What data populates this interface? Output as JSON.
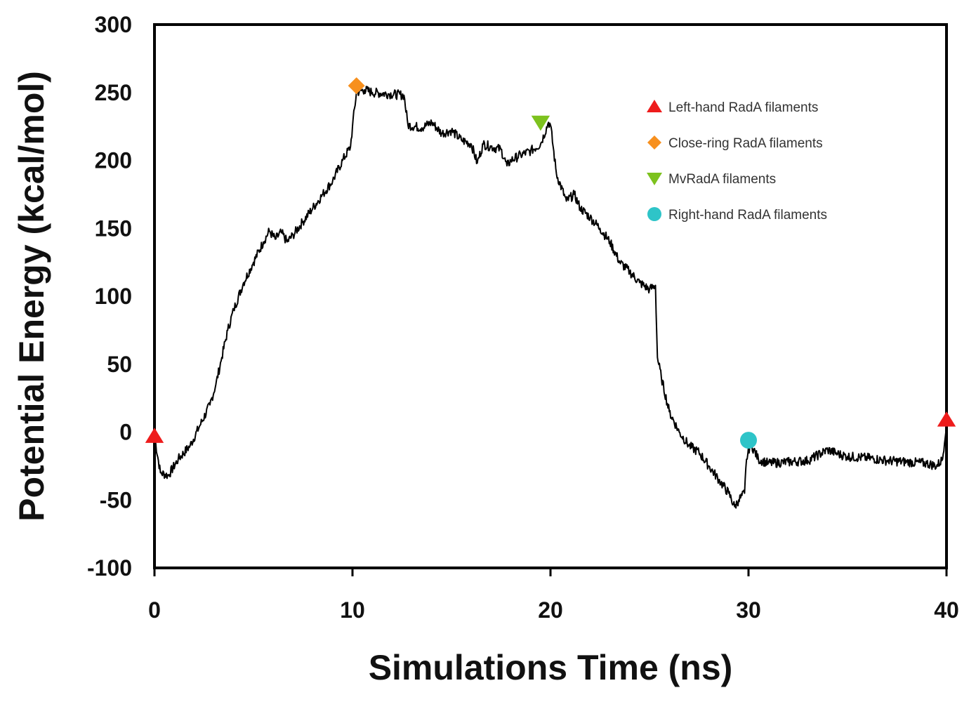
{
  "chart_data": {
    "type": "line",
    "title": "",
    "xlabel": "Simulations Time (ns)",
    "ylabel": "Potential Energy (kcal/mol)",
    "xlim": [
      0,
      40
    ],
    "ylim": [
      -100,
      300
    ],
    "xticks": [
      0,
      10,
      20,
      30,
      40
    ],
    "yticks": [
      -100,
      -50,
      0,
      50,
      100,
      150,
      200,
      250,
      300
    ],
    "xtick_labels": [
      "0",
      "10",
      "20",
      "30",
      "40"
    ],
    "ytick_labels": [
      "-100",
      "-50",
      "0",
      "50",
      "100",
      "150",
      "200",
      "250",
      "300"
    ],
    "grid": false,
    "legend_position": "top-right",
    "series": [
      {
        "name": "Potential Energy",
        "color": "#000000",
        "x": [
          0,
          0.3,
          0.7,
          1.2,
          1.8,
          2.3,
          2.8,
          3.1,
          3.4,
          3.7,
          4.0,
          4.5,
          5.0,
          5.5,
          5.8,
          6.1,
          6.4,
          6.7,
          7.0,
          7.5,
          8.0,
          8.5,
          9.0,
          9.5,
          9.9,
          10.0,
          10.2,
          10.6,
          11.0,
          11.8,
          12.6,
          12.8,
          13.5,
          14.0,
          14.5,
          15.0,
          15.5,
          16.0,
          16.3,
          16.6,
          17.0,
          17.5,
          17.8,
          18.0,
          18.5,
          19.0,
          19.5,
          19.9,
          20.0,
          20.3,
          20.8,
          21.2,
          21.5,
          22.0,
          22.5,
          23.0,
          23.5,
          24.0,
          24.5,
          25.0,
          25.3,
          25.4,
          25.6,
          26.0,
          26.5,
          27.0,
          27.5,
          28.0,
          28.5,
          29.0,
          29.3,
          29.5,
          29.8,
          29.9,
          30.1,
          30.5,
          31.0,
          32.0,
          33.0,
          34.0,
          34.5,
          35.0,
          36.0,
          37.0,
          38.0,
          39.0,
          39.5,
          39.8,
          40.0
        ],
        "y": [
          -3,
          -30,
          -32,
          -20,
          -10,
          5,
          20,
          35,
          55,
          75,
          90,
          110,
          125,
          140,
          148,
          142,
          147,
          140,
          145,
          155,
          165,
          175,
          185,
          200,
          210,
          225,
          250,
          252,
          250,
          249,
          248,
          226,
          224,
          228,
          220,
          222,
          215,
          212,
          198,
          212,
          210,
          208,
          196,
          200,
          204,
          207,
          212,
          228,
          226,
          190,
          170,
          175,
          165,
          158,
          150,
          140,
          125,
          118,
          110,
          105,
          108,
          55,
          40,
          15,
          0,
          -10,
          -15,
          -25,
          -35,
          -45,
          -55,
          -50,
          -45,
          -20,
          -8,
          -20,
          -23,
          -22,
          -21,
          -13,
          -16,
          -18,
          -19,
          -21,
          -22,
          -23,
          -25,
          -20,
          8
        ]
      }
    ],
    "markers": [
      {
        "label": "Left-hand RadA filaments",
        "shape": "triangle-up",
        "color": "#ee1c1c",
        "points": [
          [
            0,
            -3
          ],
          [
            40,
            9
          ]
        ]
      },
      {
        "label": "Close-ring RadA filaments",
        "shape": "diamond",
        "color": "#f7901e",
        "points": [
          [
            10.2,
            255
          ]
        ]
      },
      {
        "label": "MvRadA filaments",
        "shape": "triangle-down",
        "color": "#7dc21e",
        "points": [
          [
            19.5,
            228
          ]
        ]
      },
      {
        "label": "Right-hand RadA filaments",
        "shape": "circle",
        "color": "#2ec4c8",
        "points": [
          [
            30.0,
            -6
          ]
        ]
      }
    ],
    "legend": [
      {
        "label": "Left-hand RadA filaments",
        "shape": "triangle-up",
        "color": "#ee1c1c"
      },
      {
        "label": "Close-ring RadA filaments",
        "shape": "diamond",
        "color": "#f7901e"
      },
      {
        "label": "MvRadA filaments",
        "shape": "triangle-down",
        "color": "#7dc21e"
      },
      {
        "label": "Right-hand RadA filaments",
        "shape": "circle",
        "color": "#2ec4c8"
      }
    ]
  }
}
